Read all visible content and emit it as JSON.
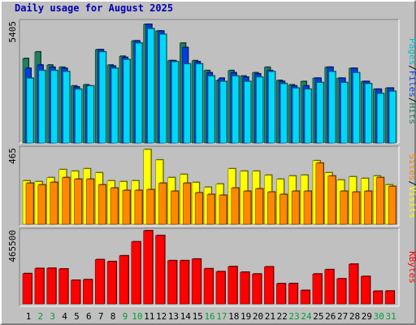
{
  "page_title": "Daily usage for August 2025",
  "chart_data": {
    "type": "bar",
    "title": "Daily usage for August 2025",
    "categories": [
      "1",
      "2",
      "3",
      "4",
      "5",
      "6",
      "7",
      "8",
      "9",
      "10",
      "11",
      "12",
      "13",
      "14",
      "15",
      "16",
      "17",
      "18",
      "19",
      "20",
      "21",
      "22",
      "23",
      "24",
      "25",
      "26",
      "27",
      "28",
      "29",
      "30",
      "31"
    ],
    "weekend_days": [
      "2",
      "3",
      "9",
      "10",
      "16",
      "17",
      "23",
      "24",
      "30",
      "31"
    ],
    "panels": [
      {
        "id": "hits-files-pages",
        "max_label": "5405",
        "ymax": 5405,
        "side_labels": [
          {
            "text": "Pages",
            "color": "#00c0d0"
          },
          {
            "text": "/",
            "color": "#000000"
          },
          {
            "text": "Files",
            "color": "#0040e0"
          },
          {
            "text": "/",
            "color": "#000000"
          },
          {
            "text": "Hits",
            "color": "#208060"
          }
        ],
        "series": [
          {
            "name": "Hits",
            "color": "#208060",
            "values": [
              3850,
              4150,
              3550,
              3450,
              2600,
              2650,
              4250,
              3550,
              3950,
              4650,
              5405,
              5100,
              3750,
              4550,
              3750,
              3300,
              2850,
              3300,
              3050,
              3200,
              3450,
              2850,
              2650,
              2800,
              2950,
              3450,
              2950,
              3400,
              2800,
              2450,
              2500
            ]
          },
          {
            "name": "Files",
            "color": "#0040e0",
            "values": [
              3400,
              3550,
              3450,
              3400,
              2550,
              2600,
              4250,
              3500,
              3900,
              4650,
              5405,
              5100,
              3750,
              4350,
              3700,
              3200,
              2950,
              3200,
              3000,
              3150,
              3300,
              2800,
              2600,
              2600,
              2950,
              3450,
              2950,
              3400,
              2800,
              2450,
              2500
            ]
          },
          {
            "name": "Pages",
            "color": "#00d8f8",
            "values": [
              2950,
              3300,
              3300,
              3250,
              2450,
              2600,
              4150,
              3400,
              3800,
              4550,
              5200,
              4950,
              3700,
              3600,
              3600,
              3050,
              2800,
              3050,
              2800,
              3000,
              3250,
              2700,
              2500,
              2450,
              2750,
              3250,
              2750,
              3200,
              2700,
              2250,
              2350
            ]
          }
        ]
      },
      {
        "id": "visits-sites",
        "max_label": "465",
        "ymax": 465,
        "side_labels": [
          {
            "text": "Sites",
            "color": "#ff8000"
          },
          {
            "text": "/",
            "color": "#000000"
          },
          {
            "text": "Visits",
            "color": "#ffff00"
          }
        ],
        "series": [
          {
            "name": "Visits",
            "color": "#ffff00",
            "values": [
              270,
              265,
              290,
              340,
              330,
              345,
              320,
              270,
              265,
              270,
              465,
              400,
              290,
              310,
              260,
              230,
              250,
              345,
              330,
              330,
              305,
              280,
              300,
              305,
              395,
              320,
              275,
              295,
              285,
              300,
              245
            ]
          },
          {
            "name": "Sites",
            "color": "#ff8800",
            "values": [
              255,
              245,
              260,
              290,
              280,
              280,
              245,
              225,
              210,
              210,
              215,
              255,
              205,
              255,
              195,
              185,
              180,
              225,
              205,
              220,
              200,
              185,
              205,
              205,
              380,
              300,
              205,
              200,
              205,
              290,
              235
            ]
          }
        ]
      },
      {
        "id": "kbytes",
        "max_label": "465500",
        "ymax": 465500,
        "side_labels": [
          {
            "text": "KBytes",
            "color": "#ff0000"
          }
        ],
        "series": [
          {
            "name": "KBytes",
            "color": "#ff0000",
            "values": [
              192500,
              225000,
              226500,
              222000,
              150000,
              154000,
              281500,
              269000,
              306000,
              395000,
              465500,
              435000,
              275000,
              275000,
              285000,
              223500,
              205000,
              237000,
              201500,
              190000,
              235500,
              128500,
              129000,
              85500,
              190000,
              218000,
              159500,
              252500,
              174500,
              80500,
              81500
            ]
          }
        ]
      }
    ]
  }
}
